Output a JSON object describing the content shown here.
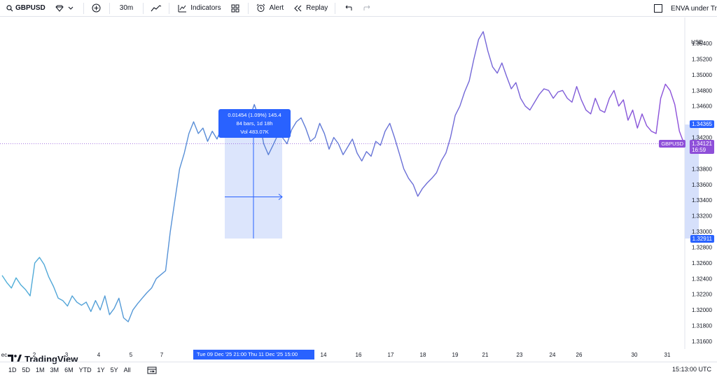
{
  "toolbar": {
    "symbol": "GBPUSD",
    "interval": "30m",
    "indicators_label": "Indicators",
    "alert_label": "Alert",
    "replay_label": "Replay",
    "right_label": "ENVA under Tr"
  },
  "axis": {
    "currency": "USD",
    "price_labels": [
      "1.35400",
      "1.35200",
      "1.35000",
      "1.34800",
      "1.34600",
      "1.34200",
      "1.33800",
      "1.33600",
      "1.33400",
      "1.33200",
      "1.33000",
      "1.32800",
      "1.32600",
      "1.32400",
      "1.32200",
      "1.32000",
      "1.31800",
      "1.31600"
    ],
    "tags": {
      "top_value": "1.34365",
      "last_symbol": "GBPUSD",
      "last_value": "1.34121",
      "countdown": "16:59",
      "bottom_value": "1.32911"
    }
  },
  "measure": {
    "line1": "0.01454 (1.09%) 145.4",
    "line2": "84 bars, 1d 18h",
    "line3": "Vol 483.07K"
  },
  "time_axis": {
    "ticks": [
      "ec",
      "2",
      "3",
      "4",
      "5",
      "7",
      "14",
      "16",
      "17",
      "18",
      "19",
      "21",
      "23",
      "24",
      "26",
      "30",
      "31"
    ],
    "range_label": "Tue 09 Dec '25   21:00   Thu 11 Dec '25   15:00"
  },
  "brand": "TradingView",
  "bottom": {
    "ranges": [
      "1D",
      "5D",
      "1M",
      "3M",
      "6M",
      "YTD",
      "1Y",
      "5Y",
      "All"
    ],
    "clock": "15:13:00 UTC"
  },
  "colors": {
    "line_start": "#4fb0d8",
    "line_mid": "#5b7fd6",
    "line_end": "#8e4fd9",
    "accent": "#2962ff",
    "measure_fill": "#d6e0fb"
  },
  "chart_data": {
    "type": "line",
    "title": "GBPUSD",
    "ylabel": "USD",
    "ylim": [
      1.3145,
      1.356
    ],
    "x_ticks": [
      "2",
      "3",
      "4",
      "5",
      "7",
      "14",
      "16",
      "17",
      "18",
      "19",
      "21",
      "23",
      "24",
      "26",
      "30",
      "31"
    ],
    "series": [
      {
        "values": [
          1.3244,
          1.3235,
          1.3228,
          1.3241,
          1.3232,
          1.3226,
          1.3218,
          1.326,
          1.3267,
          1.3258,
          1.3242,
          1.323,
          1.3215,
          1.3212,
          1.3205,
          1.3218,
          1.321,
          1.3206,
          1.321,
          1.3198,
          1.3212,
          1.32,
          1.3218,
          1.3194,
          1.3202,
          1.3215,
          1.319,
          1.3185,
          1.32,
          1.3208,
          1.3215,
          1.3222,
          1.3228,
          1.324,
          1.3245,
          1.325,
          1.33,
          1.334,
          1.338,
          1.34,
          1.3425,
          1.344,
          1.3425,
          1.3432,
          1.3415,
          1.3428,
          1.3418,
          1.3432,
          1.345,
          1.344,
          1.3455,
          1.3448,
          1.3432,
          1.3445,
          1.3462,
          1.3445,
          1.3412,
          1.3398,
          1.341,
          1.3423,
          1.342,
          1.3412,
          1.343,
          1.344,
          1.3445,
          1.3432,
          1.3415,
          1.342,
          1.3438,
          1.3425,
          1.3405,
          1.342,
          1.3412,
          1.3398,
          1.3408,
          1.3418,
          1.34,
          1.339,
          1.3402,
          1.3396,
          1.3415,
          1.341,
          1.3428,
          1.3438,
          1.342,
          1.34,
          1.338,
          1.3368,
          1.336,
          1.3345,
          1.3355,
          1.3362,
          1.3368,
          1.3375,
          1.339,
          1.34,
          1.342,
          1.3448,
          1.346,
          1.3478,
          1.3492,
          1.352,
          1.3545,
          1.3555,
          1.353,
          1.351,
          1.3502,
          1.3515,
          1.3498,
          1.3482,
          1.349,
          1.347,
          1.346,
          1.3455,
          1.3465,
          1.3475,
          1.3482,
          1.348,
          1.347,
          1.3478,
          1.348,
          1.347,
          1.3465,
          1.3485,
          1.3468,
          1.3455,
          1.345,
          1.347,
          1.3455,
          1.3452,
          1.347,
          1.348,
          1.346,
          1.3468,
          1.3442,
          1.3455,
          1.3432,
          1.345,
          1.3435,
          1.3428,
          1.3425,
          1.347,
          1.3488,
          1.348,
          1.3462,
          1.3428,
          1.3412
        ]
      }
    ],
    "highlight": {
      "from_value": 1.32911,
      "to_value": 1.34365,
      "change": "0.01454 (1.09%)"
    }
  }
}
